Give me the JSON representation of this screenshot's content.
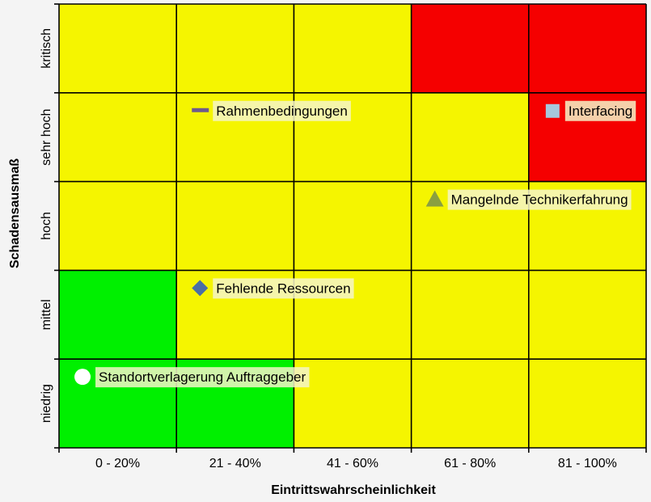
{
  "chart_data": {
    "type": "scatter",
    "subtype": "risk-matrix",
    "title": "",
    "xlabel": "Eintrittswahrscheinlichkeit",
    "ylabel": "Schadensausmaß",
    "x_categories": [
      "0 - 20%",
      "21 - 40%",
      "41 - 60%",
      "61 - 80%",
      "81 - 100%"
    ],
    "y_categories": [
      "niedrig",
      "mittel",
      "hoch",
      "sehr hoch",
      "kritisch"
    ],
    "cell_levels": [
      [
        "green",
        "green",
        "yellow",
        "yellow",
        "yellow"
      ],
      [
        "green",
        "yellow",
        "yellow",
        "yellow",
        "yellow"
      ],
      [
        "yellow",
        "yellow",
        "yellow",
        "yellow",
        "yellow"
      ],
      [
        "yellow",
        "yellow",
        "yellow",
        "yellow",
        "red"
      ],
      [
        "yellow",
        "yellow",
        "yellow",
        "red",
        "red"
      ]
    ],
    "level_colors": {
      "green": "#00f000",
      "yellow": "#f5f500",
      "red": "#f50000"
    },
    "risks": [
      {
        "name": "Rahmenbedingungen",
        "x": 1.2,
        "y": 3.8,
        "marker": "dash",
        "color": "#6e5a8c"
      },
      {
        "name": "Interfacing",
        "x": 4.2,
        "y": 3.8,
        "marker": "square",
        "color": "#a6c8dc"
      },
      {
        "name": "Mangelnde Technikerfahrung",
        "x": 3.2,
        "y": 2.8,
        "marker": "triangle",
        "color": "#8aa040"
      },
      {
        "name": "Fehlende Ressourcen",
        "x": 1.2,
        "y": 1.8,
        "marker": "diamond",
        "color": "#4a6fa5"
      },
      {
        "name": "Standortverlagerung Auftraggeber",
        "x": 0.2,
        "y": 0.8,
        "marker": "circle",
        "color": "#ffffff"
      }
    ],
    "label_bg": "#f5f5c8",
    "grid": true
  }
}
